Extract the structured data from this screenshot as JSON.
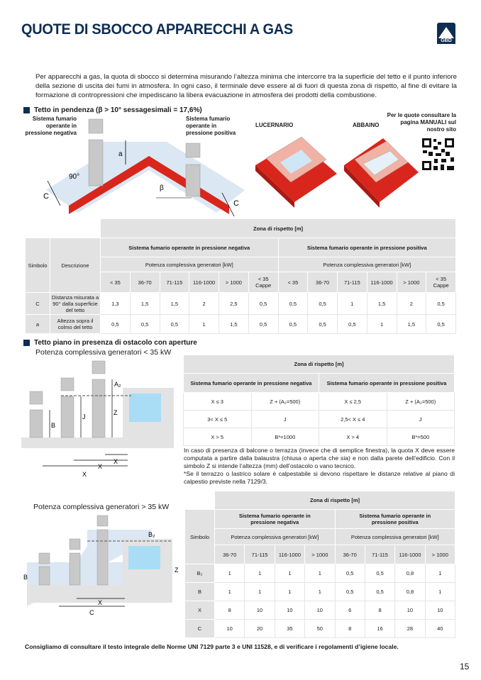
{
  "header": {
    "title": "QUOTE DI SBOCCO APPARECCHI A GAS",
    "logo_text": "GBD"
  },
  "intro": "Per apparecchi a gas, la quota di sbocco si determina misurando l’altezza minima che intercorre tra la superficie del tetto e il punto inferiore della sezione di uscita dei fumi in atmosfera. In ogni caso, il terminale deve essere al di fuori di questa zona di rispetto, al fine di evitare la formazione di contropressioni che impediscano la libera evacuazione in atmosfera dei prodotti della combustione.",
  "section1": {
    "heading": "Tetto in pendenza (β > 10° sessagesimali = 17,6%)",
    "label_negative": "Sistema fumario operante in pressione negativa",
    "label_positive": "Sistema fumario operante in pressione positiva",
    "lucernario": "LUCERNARIO",
    "abbaino": "ABBAINO",
    "qr_note": "Per le quote consultare la pagina MANUALI sul nostro sito",
    "dims": {
      "a": "a",
      "c": "C",
      "angle": "90°",
      "beta": "β"
    },
    "colors": {
      "roof": "#d9261c",
      "zone": "#dbe7f3",
      "chimney": "#c8c8c8"
    }
  },
  "table1": {
    "zona": "Zona di rispetto [m]",
    "simbolo": "Simbolo",
    "descrizione": "Descrizione",
    "neg": "Sistema fumario operante in pressione negativa",
    "pos": "Sistema fumario operante in pressione positiva",
    "potenza": "Potenza complessiva generatori [kW]",
    "ranges": [
      "< 35",
      "36-70",
      "71-115",
      "116-1000",
      "> 1000",
      "< 35 Cappe",
      "< 35",
      "36-70",
      "71-115",
      "116-1000",
      "> 1000",
      "< 35 Cappe"
    ],
    "rows": [
      {
        "sym": "C",
        "desc": "Distanza misurata a 90° dalla superficie del tetto",
        "values": [
          "1,3",
          "1,5",
          "1,5",
          "2",
          "2,5",
          "0,5",
          "0,5",
          "0,5",
          "1",
          "1,5",
          "2",
          "0,5"
        ]
      },
      {
        "sym": "a",
        "desc": "Altezza sopra il colmo del tetto",
        "values": [
          "0,5",
          "0,5",
          "0,5",
          "1",
          "1,5",
          "0,5",
          "0,5",
          "0,5",
          "0,5",
          "1",
          "1,5",
          "0,5"
        ]
      }
    ]
  },
  "section2": {
    "heading": "Tetto piano in presenza di ostacolo con aperture",
    "sub1": "Potenza complessiva generatori < 35 kW",
    "sub2": "Potenza complessiva generatori > 35 kW",
    "dims": {
      "a2": "A₂",
      "b": "B",
      "j": "J",
      "z": "Z",
      "x": "X",
      "b2": "B₂",
      "c": "C"
    }
  },
  "table2": {
    "zona": "Zona di rispetto [m]",
    "neg": "Sistema fumario operante in pressione negativa",
    "pos": "Sistema fumario operante in pressione positiva",
    "rows": [
      [
        "X ≤ 3",
        "Z + (A₂=500)",
        "X ≤ 2,5",
        "Z + (A₂=500)"
      ],
      [
        "3< X ≤ 5",
        "J",
        "2,5< X ≤ 4",
        "J"
      ],
      [
        "X > 5",
        "B*=1000",
        "X > 4",
        "B*=500"
      ]
    ]
  },
  "notes": [
    "In caso di presenza di balcone o terrazza (invece che di semplice finestra), la quota X deve essere computata a partire dalla balaustra (chiusa o aperta che sia) e non dalla parete dell’edificio. Con il simbolo Z si intende l’altezza (mm) dell’ostacolo o vano tecnico.",
    "*Se il terrazzo o lastrico solare è calpestabile si devono rispettare le distanze relative al piano di calpestio previste nella 7129/3."
  ],
  "table3": {
    "zona": "Zona di rispetto [m]",
    "simbolo": "Simbolo",
    "neg": "Sistema fumario operante in pressione negativa",
    "pos": "Sistema fumario operante in pressione positiva",
    "potenza": "Potenza complessiva generatori [kW]",
    "ranges": [
      "36-70",
      "71-115",
      "116-1000",
      "> 1000",
      "36-70",
      "71-115",
      "116-1000",
      "> 1000"
    ],
    "rows": [
      {
        "sym": "B₂",
        "values": [
          "1",
          "1",
          "1",
          "1",
          "0,5",
          "0,5",
          "0,8",
          "1"
        ]
      },
      {
        "sym": "B",
        "values": [
          "1",
          "1",
          "1",
          "1",
          "0,5",
          "0,5",
          "0,8",
          "1"
        ]
      },
      {
        "sym": "X",
        "values": [
          "8",
          "10",
          "10",
          "10",
          "6",
          "8",
          "10",
          "10"
        ]
      },
      {
        "sym": "C",
        "values": [
          "10",
          "20",
          "35",
          "50",
          "8",
          "16",
          "28",
          "40"
        ]
      }
    ]
  },
  "footer": "Consigliamo di consultare il testo integrale delle Norme UNI 7129 parte 3 e UNI 11528, e di verificare i regolamenti d’igiene locale.",
  "page_number": "15"
}
